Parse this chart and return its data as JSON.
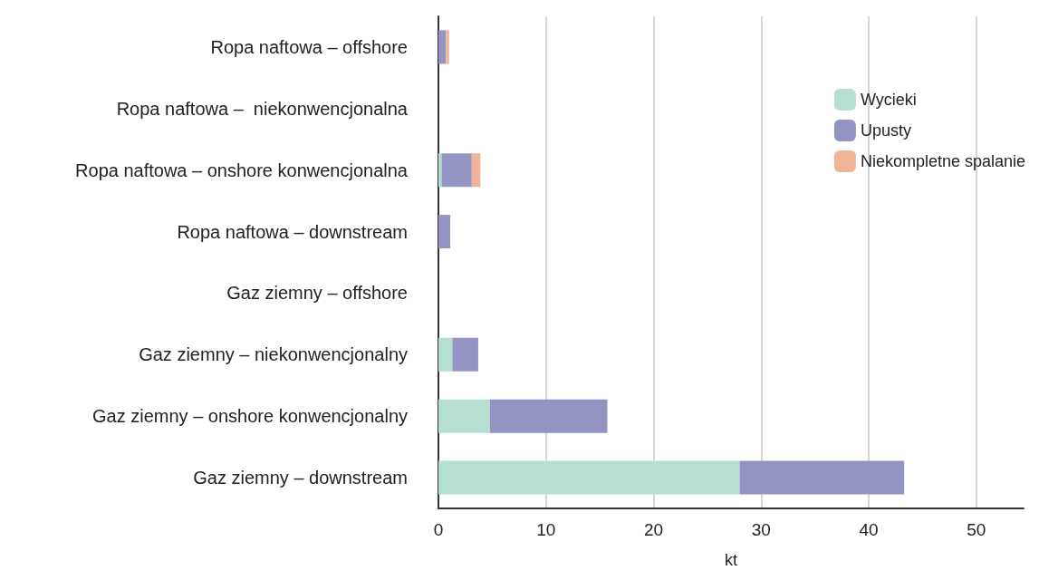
{
  "chart_data": {
    "type": "bar",
    "orientation": "horizontal",
    "stacked": true,
    "xlabel": "kt",
    "categories": [
      "Ropa naftowa – offshore",
      "Ropa naftowa –  niekonwencjonalna",
      "Ropa naftowa – onshore konwencjonalna",
      "Ropa naftowa – downstream",
      "Gaz ziemny – offshore",
      "Gaz ziemny – niekonwencjonalny",
      "Gaz ziemny – onshore konwencjonalny",
      "Gaz ziemny – downstream"
    ],
    "series": [
      {
        "name": "Wycieki",
        "color": "#b5dfd0",
        "values": [
          0,
          0,
          0.3,
          0,
          0,
          1.3,
          4.8,
          28
        ]
      },
      {
        "name": "Upusty",
        "color": "#9494c4",
        "values": [
          0.7,
          0,
          2.8,
          1.1,
          0,
          2.4,
          10.9,
          15.3
        ]
      },
      {
        "name": "Niekompletne spalanie",
        "color": "#f0b498",
        "values": [
          0.3,
          0,
          0.8,
          0,
          0,
          0,
          0,
          0
        ]
      }
    ],
    "xlim": [
      0,
      54.4
    ],
    "xticks": [
      0,
      10,
      20,
      30,
      40,
      50
    ],
    "grid": "x",
    "legend": "top right"
  }
}
